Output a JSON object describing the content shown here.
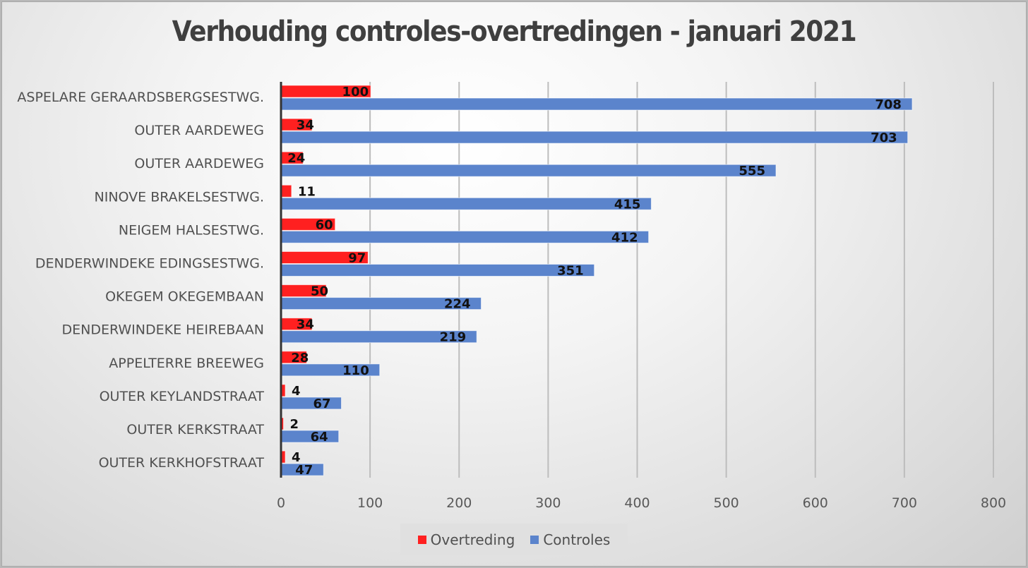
{
  "chart_data": {
    "type": "bar",
    "orientation": "horizontal",
    "title": "Verhouding controles-overtredingen - januari 2021",
    "xlabel": "",
    "ylabel": "",
    "xlim": [
      0,
      800
    ],
    "xticks": [
      0,
      100,
      200,
      300,
      400,
      500,
      600,
      700,
      800
    ],
    "grid": true,
    "legend_position": "bottom",
    "categories": [
      "ASPELARE GERAARDSBERGSESTWG.",
      "OUTER AARDEWEG",
      "OUTER AARDEWEG",
      "NINOVE BRAKELSESTWG.",
      "NEIGEM HALSESTWG.",
      "DENDERWINDEKE EDINGSESTWG.",
      "OKEGEM OKEGEMBAAN",
      "DENDERWINDEKE HEIREBAAN",
      "APPELTERRE BREEWEG",
      "OUTER KEYLANDSTRAAT",
      "OUTER KERKSTRAAT",
      "OUTER KERKHOFSTRAAT"
    ],
    "series": [
      {
        "name": "Overtreding",
        "color": "#ff2020",
        "values": [
          100,
          34,
          24,
          11,
          60,
          97,
          50,
          34,
          28,
          4,
          2,
          4
        ]
      },
      {
        "name": "Controles",
        "color": "#5b84cc",
        "values": [
          708,
          703,
          555,
          415,
          412,
          351,
          224,
          219,
          110,
          67,
          64,
          47
        ]
      }
    ]
  }
}
